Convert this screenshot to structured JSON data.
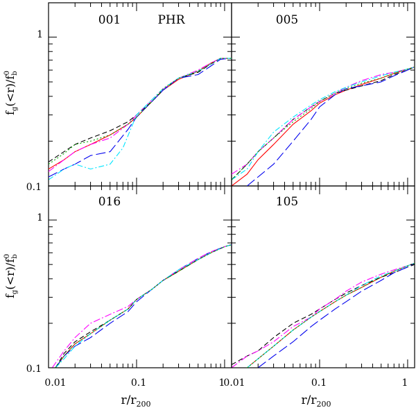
{
  "chart_data": [
    {
      "type": "line",
      "panel_label": "001",
      "extra_label": "PHR",
      "xscale": "log",
      "yscale": "log",
      "xlim": [
        0.01,
        1.2
      ],
      "ylim": [
        0.1,
        1.7
      ],
      "series": [
        {
          "name": "red-solid",
          "color": "#ff0000",
          "dash": "",
          "x": [
            0.01,
            0.015,
            0.02,
            0.03,
            0.05,
            0.08,
            0.1,
            0.15,
            0.2,
            0.3,
            0.5,
            0.7,
            0.9,
            1.2
          ],
          "y": [
            0.13,
            0.15,
            0.17,
            0.19,
            0.22,
            0.26,
            0.29,
            0.37,
            0.44,
            0.52,
            0.59,
            0.67,
            0.72,
            0.72
          ]
        },
        {
          "name": "black-dashed",
          "color": "#000000",
          "dash": "7,4",
          "x": [
            0.01,
            0.015,
            0.02,
            0.03,
            0.05,
            0.08,
            0.1,
            0.15,
            0.2,
            0.3,
            0.5,
            0.7,
            0.9,
            1.2
          ],
          "y": [
            0.145,
            0.17,
            0.19,
            0.21,
            0.235,
            0.27,
            0.3,
            0.37,
            0.44,
            0.53,
            0.58,
            0.66,
            0.72,
            0.72
          ]
        },
        {
          "name": "blue-longdash",
          "color": "#0000ee",
          "dash": "14,5",
          "x": [
            0.01,
            0.015,
            0.02,
            0.03,
            0.05,
            0.08,
            0.1,
            0.15,
            0.2,
            0.3,
            0.5,
            0.7,
            0.9,
            1.2
          ],
          "y": [
            0.115,
            0.13,
            0.14,
            0.16,
            0.17,
            0.24,
            0.29,
            0.37,
            0.44,
            0.53,
            0.56,
            0.64,
            0.71,
            0.72
          ]
        },
        {
          "name": "magenta-dashdot",
          "color": "#ff00ff",
          "dash": "10,3,2,3",
          "x": [
            0.01,
            0.015,
            0.02,
            0.03,
            0.05,
            0.08,
            0.1,
            0.15,
            0.2,
            0.3,
            0.5,
            0.7,
            0.9,
            1.2
          ],
          "y": [
            0.125,
            0.15,
            0.17,
            0.19,
            0.21,
            0.26,
            0.3,
            0.38,
            0.45,
            0.53,
            0.6,
            0.67,
            0.72,
            0.72
          ]
        },
        {
          "name": "cyan-dashdot",
          "color": "#00e5ff",
          "dash": "8,3,2,3",
          "x": [
            0.01,
            0.015,
            0.02,
            0.03,
            0.05,
            0.07,
            0.1,
            0.15,
            0.2,
            0.3,
            0.5,
            0.7,
            0.9,
            1.2
          ],
          "y": [
            0.11,
            0.13,
            0.14,
            0.13,
            0.14,
            0.18,
            0.3,
            0.38,
            0.45,
            0.53,
            0.59,
            0.66,
            0.72,
            0.72
          ]
        },
        {
          "name": "green-dotted",
          "color": "#00aa00",
          "dash": "2,3",
          "x": [
            0.01,
            0.015,
            0.02,
            0.03,
            0.05,
            0.08,
            0.1,
            0.15,
            0.2,
            0.3,
            0.5,
            0.7,
            0.9,
            1.2
          ],
          "y": [
            0.14,
            0.165,
            0.19,
            0.2,
            0.22,
            0.26,
            0.29,
            0.37,
            0.45,
            0.53,
            0.59,
            0.66,
            0.72,
            0.72
          ]
        }
      ]
    },
    {
      "type": "line",
      "panel_label": "005",
      "xscale": "log",
      "yscale": "log",
      "xlim": [
        0.01,
        1.2
      ],
      "ylim": [
        0.1,
        1.7
      ],
      "series": [
        {
          "name": "red-solid",
          "color": "#ff0000",
          "dash": "",
          "x": [
            0.01,
            0.015,
            0.02,
            0.03,
            0.05,
            0.08,
            0.1,
            0.15,
            0.2,
            0.3,
            0.5,
            0.7,
            1.0,
            1.2
          ],
          "y": [
            0.1,
            0.12,
            0.15,
            0.19,
            0.26,
            0.32,
            0.36,
            0.41,
            0.44,
            0.48,
            0.53,
            0.57,
            0.61,
            0.63
          ]
        },
        {
          "name": "black-dashed",
          "color": "#000000",
          "dash": "7,4",
          "x": [
            0.01,
            0.015,
            0.02,
            0.03,
            0.05,
            0.08,
            0.1,
            0.15,
            0.2,
            0.3,
            0.5,
            0.7,
            1.0,
            1.2
          ],
          "y": [
            0.11,
            0.14,
            0.17,
            0.21,
            0.28,
            0.34,
            0.37,
            0.42,
            0.44,
            0.47,
            0.51,
            0.56,
            0.6,
            0.63
          ]
        },
        {
          "name": "blue-longdash",
          "color": "#0000ee",
          "dash": "14,5",
          "x": [
            0.015,
            0.02,
            0.03,
            0.05,
            0.08,
            0.1,
            0.15,
            0.2,
            0.3,
            0.5,
            0.7,
            1.0,
            1.2
          ],
          "y": [
            0.1,
            0.115,
            0.14,
            0.2,
            0.28,
            0.34,
            0.41,
            0.45,
            0.47,
            0.5,
            0.55,
            0.6,
            0.63
          ]
        },
        {
          "name": "magenta-dashdot",
          "color": "#ff00ff",
          "dash": "10,3,2,3",
          "x": [
            0.01,
            0.015,
            0.02,
            0.03,
            0.05,
            0.08,
            0.1,
            0.15,
            0.2,
            0.3,
            0.5,
            0.7,
            1.0,
            1.2
          ],
          "y": [
            0.12,
            0.14,
            0.17,
            0.21,
            0.28,
            0.34,
            0.37,
            0.42,
            0.46,
            0.51,
            0.56,
            0.58,
            0.61,
            0.63
          ]
        },
        {
          "name": "cyan-dashdot",
          "color": "#00e5ff",
          "dash": "8,3,2,3",
          "x": [
            0.01,
            0.015,
            0.02,
            0.03,
            0.05,
            0.08,
            0.1,
            0.15,
            0.2,
            0.3,
            0.5,
            0.7,
            1.0,
            1.2
          ],
          "y": [
            0.11,
            0.13,
            0.17,
            0.23,
            0.29,
            0.35,
            0.38,
            0.43,
            0.46,
            0.5,
            0.55,
            0.58,
            0.61,
            0.63
          ]
        },
        {
          "name": "green-dotted",
          "color": "#00aa00",
          "dash": "2,3",
          "x": [
            0.01,
            0.015,
            0.02,
            0.03,
            0.05,
            0.08,
            0.1,
            0.15,
            0.2,
            0.3,
            0.5,
            0.7,
            1.0,
            1.2
          ],
          "y": [
            0.11,
            0.14,
            0.17,
            0.21,
            0.27,
            0.33,
            0.37,
            0.42,
            0.45,
            0.49,
            0.53,
            0.57,
            0.61,
            0.63
          ]
        }
      ]
    },
    {
      "type": "line",
      "panel_label": "016",
      "xscale": "log",
      "yscale": "log",
      "xlim": [
        0.01,
        1.2
      ],
      "ylim": [
        0.1,
        1.7
      ],
      "series": [
        {
          "name": "red-solid",
          "color": "#ff0000",
          "dash": "",
          "x": [
            0.012,
            0.015,
            0.02,
            0.03,
            0.05,
            0.08,
            0.1,
            0.15,
            0.2,
            0.3,
            0.5,
            0.7,
            1.0,
            1.2
          ],
          "y": [
            0.1,
            0.12,
            0.145,
            0.17,
            0.21,
            0.25,
            0.29,
            0.34,
            0.39,
            0.45,
            0.54,
            0.6,
            0.66,
            0.68
          ]
        },
        {
          "name": "black-dashed",
          "color": "#000000",
          "dash": "7,4",
          "x": [
            0.012,
            0.015,
            0.02,
            0.03,
            0.05,
            0.08,
            0.1,
            0.15,
            0.2,
            0.3,
            0.5,
            0.7,
            1.0,
            1.2
          ],
          "y": [
            0.1,
            0.125,
            0.15,
            0.175,
            0.21,
            0.25,
            0.29,
            0.34,
            0.39,
            0.45,
            0.54,
            0.6,
            0.66,
            0.68
          ]
        },
        {
          "name": "blue-longdash",
          "color": "#0000ee",
          "dash": "14,5",
          "x": [
            0.012,
            0.015,
            0.02,
            0.03,
            0.05,
            0.08,
            0.1,
            0.15,
            0.2,
            0.3,
            0.5,
            0.7,
            1.0,
            1.2
          ],
          "y": [
            0.1,
            0.12,
            0.14,
            0.16,
            0.2,
            0.24,
            0.28,
            0.34,
            0.39,
            0.46,
            0.55,
            0.61,
            0.66,
            0.68
          ]
        },
        {
          "name": "magenta-dashdot",
          "color": "#ff00ff",
          "dash": "10,3,2,3",
          "x": [
            0.011,
            0.015,
            0.02,
            0.03,
            0.05,
            0.08,
            0.1,
            0.15,
            0.2,
            0.3,
            0.5,
            0.7,
            1.0,
            1.2
          ],
          "y": [
            0.1,
            0.13,
            0.16,
            0.2,
            0.23,
            0.26,
            0.29,
            0.34,
            0.39,
            0.46,
            0.55,
            0.61,
            0.66,
            0.68
          ]
        },
        {
          "name": "cyan-dashdot",
          "color": "#00e5ff",
          "dash": "8,3,2,3",
          "x": [
            0.012,
            0.015,
            0.02,
            0.03,
            0.05,
            0.08,
            0.1,
            0.15,
            0.2,
            0.3,
            0.5,
            0.7,
            1.0,
            1.2
          ],
          "y": [
            0.1,
            0.115,
            0.14,
            0.17,
            0.21,
            0.25,
            0.29,
            0.34,
            0.39,
            0.46,
            0.54,
            0.6,
            0.66,
            0.68
          ]
        },
        {
          "name": "green-dotted",
          "color": "#00aa00",
          "dash": "2,3",
          "x": [
            0.012,
            0.015,
            0.02,
            0.03,
            0.05,
            0.08,
            0.1,
            0.15,
            0.2,
            0.3,
            0.5,
            0.7,
            1.0,
            1.2
          ],
          "y": [
            0.1,
            0.12,
            0.145,
            0.17,
            0.21,
            0.25,
            0.29,
            0.34,
            0.39,
            0.45,
            0.54,
            0.6,
            0.66,
            0.68
          ]
        }
      ]
    },
    {
      "type": "line",
      "panel_label": "105",
      "xscale": "log",
      "yscale": "log",
      "xlim": [
        0.01,
        1.2
      ],
      "ylim": [
        0.1,
        1.7
      ],
      "series": [
        {
          "name": "red-solid",
          "color": "#ff0000",
          "dash": "",
          "x": [
            0.015,
            0.02,
            0.03,
            0.05,
            0.08,
            0.1,
            0.15,
            0.2,
            0.3,
            0.5,
            0.7,
            1.0,
            1.2
          ],
          "y": [
            0.1,
            0.115,
            0.14,
            0.18,
            0.22,
            0.24,
            0.28,
            0.31,
            0.35,
            0.41,
            0.45,
            0.49,
            0.51
          ]
        },
        {
          "name": "black-dashed",
          "color": "#000000",
          "dash": "7,4",
          "x": [
            0.01,
            0.015,
            0.02,
            0.03,
            0.05,
            0.08,
            0.1,
            0.15,
            0.2,
            0.3,
            0.5,
            0.7,
            1.0,
            1.2
          ],
          "y": [
            0.105,
            0.12,
            0.13,
            0.16,
            0.2,
            0.23,
            0.25,
            0.29,
            0.32,
            0.36,
            0.41,
            0.44,
            0.48,
            0.5
          ]
        },
        {
          "name": "blue-longdash",
          "color": "#0000ee",
          "dash": "14,5",
          "x": [
            0.02,
            0.03,
            0.05,
            0.08,
            0.1,
            0.15,
            0.2,
            0.3,
            0.5,
            0.7,
            1.0,
            1.2
          ],
          "y": [
            0.1,
            0.12,
            0.15,
            0.19,
            0.21,
            0.25,
            0.28,
            0.33,
            0.39,
            0.44,
            0.48,
            0.51
          ]
        },
        {
          "name": "magenta-dashdot",
          "color": "#ff00ff",
          "dash": "10,3,2,3",
          "x": [
            0.01,
            0.015,
            0.02,
            0.03,
            0.05,
            0.08,
            0.1,
            0.15,
            0.2,
            0.3,
            0.5,
            0.7,
            1.0,
            1.2
          ],
          "y": [
            0.1,
            0.12,
            0.13,
            0.15,
            0.19,
            0.22,
            0.25,
            0.29,
            0.33,
            0.38,
            0.43,
            0.46,
            0.49,
            0.51
          ]
        },
        {
          "name": "cyan-dashdot",
          "color": "#00e5ff",
          "dash": "8,3,2,3",
          "x": [
            0.015,
            0.02,
            0.03,
            0.05,
            0.08,
            0.1,
            0.15,
            0.2,
            0.3,
            0.5,
            0.7,
            1.0,
            1.2
          ],
          "y": [
            0.1,
            0.115,
            0.14,
            0.18,
            0.22,
            0.24,
            0.28,
            0.31,
            0.36,
            0.42,
            0.45,
            0.49,
            0.51
          ]
        },
        {
          "name": "green-dotted",
          "color": "#00aa00",
          "dash": "2,3",
          "x": [
            0.015,
            0.02,
            0.03,
            0.05,
            0.08,
            0.1,
            0.15,
            0.2,
            0.3,
            0.5,
            0.7,
            1.0,
            1.2
          ],
          "y": [
            0.1,
            0.115,
            0.14,
            0.18,
            0.22,
            0.24,
            0.28,
            0.31,
            0.35,
            0.41,
            0.45,
            0.49,
            0.51
          ]
        }
      ]
    }
  ],
  "axes": {
    "y_label_main": "f",
    "y_label_sub": "g",
    "y_label_mid": "(<r)/f",
    "y_label_sub2": "b",
    "y_label_sup2": "0",
    "x_label_main": "r/r",
    "x_label_sub": "200",
    "y_tick_labels": [
      "1",
      "0.1"
    ],
    "x_tick_labels_left": [
      "0.01",
      "0.1",
      "1"
    ],
    "x_tick_labels_right": [
      "0.01",
      "0.1",
      "1"
    ]
  }
}
